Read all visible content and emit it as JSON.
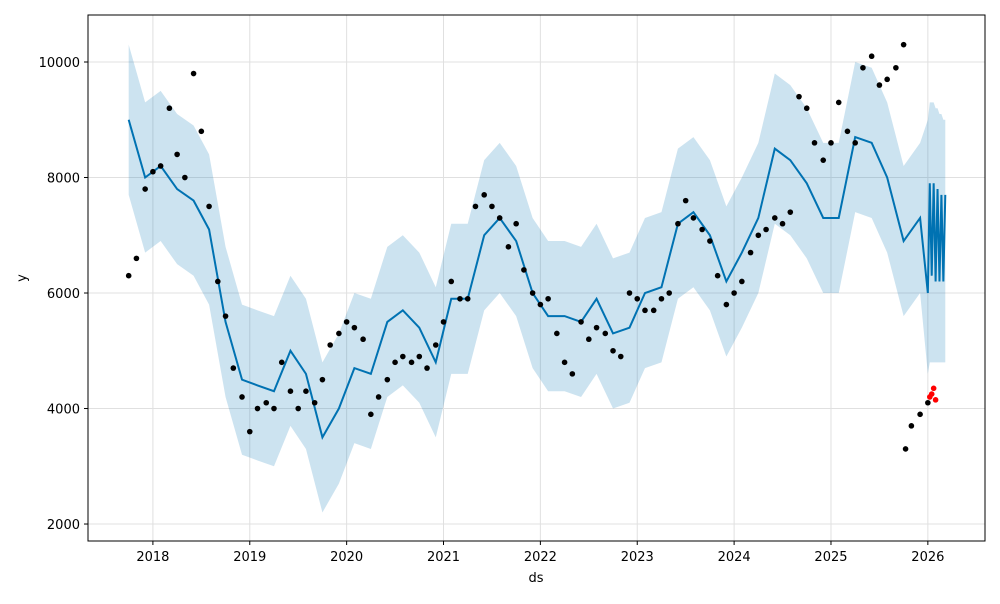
{
  "chart_data": {
    "type": "forecast",
    "xlabel": "ds",
    "ylabel": "y",
    "xlim": [
      2017.33,
      2026.59
    ],
    "ylim": [
      1706,
      10814
    ],
    "xticks": [
      2018,
      2019,
      2020,
      2021,
      2022,
      2023,
      2024,
      2025,
      2026
    ],
    "yticks": [
      2000,
      4000,
      6000,
      8000,
      10000
    ],
    "grid": true,
    "forecast": {
      "color": "#0072b2",
      "band_color": "#0072b2",
      "x": [
        2017.75,
        2017.92,
        2018.08,
        2018.25,
        2018.42,
        2018.58,
        2018.75,
        2018.92,
        2019.08,
        2019.25,
        2019.42,
        2019.58,
        2019.75,
        2019.92,
        2020.08,
        2020.25,
        2020.42,
        2020.58,
        2020.75,
        2020.92,
        2021.08,
        2021.25,
        2021.42,
        2021.58,
        2021.75,
        2021.92,
        2022.08,
        2022.25,
        2022.42,
        2022.58,
        2022.75,
        2022.92,
        2023.08,
        2023.25,
        2023.42,
        2023.58,
        2023.75,
        2023.92,
        2024.08,
        2024.25,
        2024.42,
        2024.58,
        2024.75,
        2024.92,
        2025.08,
        2025.25,
        2025.42,
        2025.58,
        2025.75,
        2025.92,
        2026.0,
        2026.02,
        2026.04,
        2026.06,
        2026.08,
        2026.1,
        2026.12,
        2026.14,
        2026.16,
        2026.18
      ],
      "values": [
        9000,
        8000,
        8200,
        7800,
        7600,
        7100,
        5500,
        4500,
        4400,
        4300,
        5000,
        4600,
        3500,
        4000,
        4700,
        4600,
        5500,
        5700,
        5400,
        4800,
        5900,
        5900,
        7000,
        7300,
        6900,
        6000,
        5600,
        5600,
        5500,
        5900,
        5300,
        5400,
        6000,
        6100,
        7200,
        7400,
        7000,
        6200,
        6700,
        7300,
        8500,
        8300,
        7900,
        7300,
        7300,
        8700,
        8600,
        8000,
        6900,
        7300,
        6000,
        7900,
        6300,
        7900,
        6200,
        7800,
        6200,
        7700,
        6200,
        7700
      ],
      "upper": [
        10300,
        9300,
        9500,
        9100,
        8900,
        8400,
        6800,
        5800,
        5700,
        5600,
        6300,
        5900,
        4800,
        5300,
        6000,
        5900,
        6800,
        7000,
        6700,
        6100,
        7200,
        7200,
        8300,
        8600,
        8200,
        7300,
        6900,
        6900,
        6800,
        7200,
        6600,
        6700,
        7300,
        7400,
        8500,
        8700,
        8300,
        7500,
        8000,
        8600,
        9800,
        9600,
        9200,
        8600,
        8600,
        10000,
        9900,
        9300,
        8200,
        8600,
        9000,
        9300,
        9300,
        9300,
        9200,
        9200,
        9100,
        9100,
        9000,
        9000
      ],
      "lower": [
        7700,
        6700,
        6900,
        6500,
        6300,
        5800,
        4200,
        3200,
        3100,
        3000,
        3700,
        3300,
        2200,
        2700,
        3400,
        3300,
        4200,
        4400,
        4100,
        3500,
        4600,
        4600,
        5700,
        6000,
        5600,
        4700,
        4300,
        4300,
        4200,
        4600,
        4000,
        4100,
        4700,
        4800,
        5900,
        6100,
        5700,
        4900,
        5400,
        6000,
        7200,
        7000,
        6600,
        6000,
        6000,
        7400,
        7300,
        6700,
        5600,
        6000,
        4600,
        4800,
        4800,
        4800,
        4800,
        4800,
        4800,
        4800,
        4800,
        4800
      ]
    },
    "observed": {
      "color": "#000000",
      "x": [
        2017.75,
        2017.83,
        2017.92,
        2018.0,
        2018.08,
        2018.17,
        2018.25,
        2018.33,
        2018.42,
        2018.5,
        2018.58,
        2018.67,
        2018.75,
        2018.83,
        2018.92,
        2019.0,
        2019.08,
        2019.17,
        2019.25,
        2019.33,
        2019.42,
        2019.5,
        2019.58,
        2019.67,
        2019.75,
        2019.83,
        2019.92,
        2020.0,
        2020.08,
        2020.17,
        2020.25,
        2020.33,
        2020.42,
        2020.5,
        2020.58,
        2020.67,
        2020.75,
        2020.83,
        2020.92,
        2021.0,
        2021.08,
        2021.17,
        2021.25,
        2021.33,
        2021.42,
        2021.5,
        2021.58,
        2021.67,
        2021.75,
        2021.83,
        2021.92,
        2022.0,
        2022.08,
        2022.17,
        2022.25,
        2022.33,
        2022.42,
        2022.5,
        2022.58,
        2022.67,
        2022.75,
        2022.83,
        2022.92,
        2023.0,
        2023.08,
        2023.17,
        2023.25,
        2023.33,
        2023.42,
        2023.5,
        2023.58,
        2023.67,
        2023.75,
        2023.83,
        2023.92,
        2024.0,
        2024.08,
        2024.17,
        2024.25,
        2024.33,
        2024.42,
        2024.5,
        2024.58,
        2024.67,
        2024.75,
        2024.83,
        2024.92,
        2025.0,
        2025.08,
        2025.17,
        2025.25,
        2025.33,
        2025.42,
        2025.5,
        2025.58,
        2025.67,
        2025.75,
        2025.77,
        2025.83,
        2025.92,
        2026.0
      ],
      "values": [
        6300,
        6600,
        7800,
        8100,
        8200,
        9200,
        8400,
        8000,
        9800,
        8800,
        7500,
        6200,
        5600,
        4700,
        4200,
        3600,
        4000,
        4100,
        4000,
        4800,
        4300,
        4000,
        4300,
        4100,
        4500,
        5100,
        5300,
        5500,
        5400,
        5200,
        3900,
        4200,
        4500,
        4800,
        4900,
        4800,
        4900,
        4700,
        5100,
        5500,
        6200,
        5900,
        5900,
        7500,
        7700,
        7500,
        7300,
        6800,
        7200,
        6400,
        6000,
        5800,
        5900,
        5300,
        4800,
        4600,
        5500,
        5200,
        5400,
        5300,
        5000,
        4900,
        6000,
        5900,
        5700,
        5700,
        5900,
        6000,
        7200,
        7600,
        7300,
        7100,
        6900,
        6300,
        5800,
        6000,
        6200,
        6700,
        7000,
        7100,
        7300,
        7200,
        7400,
        9400,
        9200,
        8600,
        8300,
        8600,
        9300,
        8800,
        8600,
        9900,
        10100,
        9600,
        9700,
        9900,
        10300,
        3300,
        3700,
        3900,
        4100
      ]
    },
    "future_observed": {
      "color": "#ff0000",
      "x": [
        2026.02,
        2026.04,
        2026.06,
        2026.08
      ],
      "values": [
        4200,
        4250,
        4350,
        4150
      ]
    }
  }
}
